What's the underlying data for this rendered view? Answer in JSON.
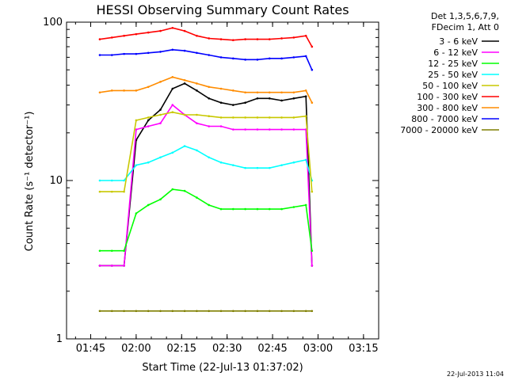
{
  "chart_data": {
    "type": "line",
    "title": "HESSI Observing Summary Count Rates",
    "xlabel": "Start Time (22-Jul-13 01:37:02)",
    "ylabel": "Count Rate (s⁻¹ detector⁻¹)",
    "y_scale": "log",
    "ylim": [
      1,
      100
    ],
    "y_ticks": [
      "1",
      "10",
      "100"
    ],
    "xlim": [
      "01:37:02",
      "03:20:00"
    ],
    "x_ticks": [
      "01:45",
      "02:00",
      "02:15",
      "02:30",
      "02:45",
      "03:00",
      "03:15"
    ],
    "legend_header": [
      "Det 1,3,5,6,7,9,",
      "FDecim 1, Att 0"
    ],
    "legend_position": "top-right, outside plot",
    "timestamp": "22-Jul-2013 11:04",
    "grid": false,
    "x_times": [
      "01:48:00",
      "01:52:00",
      "01:56:00",
      "02:00:00",
      "02:04:00",
      "02:08:00",
      "02:12:00",
      "02:16:00",
      "02:20:00",
      "02:24:00",
      "02:28:00",
      "02:32:00",
      "02:36:00",
      "02:40:00",
      "02:44:00",
      "02:48:00",
      "02:52:00",
      "02:56:00",
      "02:58:00"
    ],
    "series": [
      {
        "name": "3 - 6 keV",
        "color": "#000000",
        "values": [
          2.9,
          2.9,
          2.9,
          18,
          24,
          28,
          38,
          41,
          37,
          33,
          31,
          30,
          31,
          33,
          33,
          32,
          33,
          34,
          2.9
        ]
      },
      {
        "name": "6 - 12 keV",
        "color": "#ff00ff",
        "values": [
          2.9,
          2.9,
          2.9,
          21,
          22,
          23,
          30,
          26,
          23,
          22,
          22,
          21,
          21,
          21,
          21,
          21,
          21,
          21,
          2.9
        ]
      },
      {
        "name": "12 - 25 keV",
        "color": "#00ff00",
        "values": [
          3.6,
          3.6,
          3.6,
          6.2,
          7.0,
          7.6,
          8.8,
          8.6,
          7.8,
          7.0,
          6.6,
          6.6,
          6.6,
          6.6,
          6.6,
          6.6,
          6.8,
          7.0,
          3.6
        ]
      },
      {
        "name": "25 - 50 keV",
        "color": "#00ffff",
        "values": [
          10,
          10,
          10,
          12.5,
          13,
          14,
          15,
          16.5,
          15.5,
          14,
          13,
          12.5,
          12,
          12,
          12,
          12.5,
          13,
          13.5,
          10
        ]
      },
      {
        "name": "50 - 100 keV",
        "color": "#c8c800",
        "values": [
          8.5,
          8.5,
          8.5,
          24,
          25,
          26,
          27,
          26,
          26,
          25.5,
          25,
          25,
          25,
          25,
          25,
          25,
          25,
          25.5,
          8.5
        ]
      },
      {
        "name": "100 - 300 keV",
        "color": "#ff0000",
        "values": [
          78,
          80,
          82,
          84,
          86,
          88,
          92,
          88,
          82,
          79,
          78,
          77,
          78,
          78,
          78,
          79,
          80,
          82,
          70
        ]
      },
      {
        "name": "300 - 800 keV",
        "color": "#ff8c00",
        "values": [
          36,
          37,
          37,
          37,
          39,
          42,
          45,
          43,
          41,
          39,
          38,
          37,
          36,
          36,
          36,
          36,
          36,
          37,
          31
        ]
      },
      {
        "name": "800 - 7000 keV",
        "color": "#0000ff",
        "values": [
          62,
          62,
          63,
          63,
          64,
          65,
          67,
          66,
          64,
          62,
          60,
          59,
          58,
          58,
          59,
          59,
          60,
          61,
          50
        ]
      },
      {
        "name": "7000 - 20000 keV",
        "color": "#7f7f00",
        "values": [
          1.5,
          1.5,
          1.5,
          1.5,
          1.5,
          1.5,
          1.5,
          1.5,
          1.5,
          1.5,
          1.5,
          1.5,
          1.5,
          1.5,
          1.5,
          1.5,
          1.5,
          1.5,
          1.5
        ]
      }
    ]
  }
}
